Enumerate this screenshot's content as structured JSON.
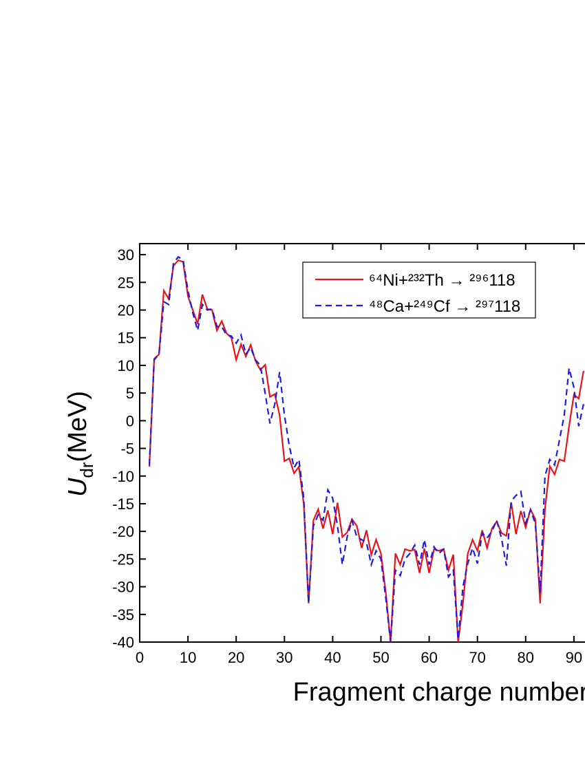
{
  "chart_data": {
    "type": "line",
    "xlabel": "Fragment charge number",
    "ylabel": {
      "main": "U",
      "sub": "dr",
      "unit": "(MeV)"
    },
    "x": [
      2,
      3,
      4,
      5,
      6,
      7,
      8,
      9,
      10,
      11,
      12,
      13,
      14,
      15,
      16,
      17,
      18,
      19,
      20,
      21,
      22,
      23,
      24,
      25,
      26,
      27,
      28,
      29,
      30,
      31,
      32,
      33,
      34,
      35,
      36,
      37,
      38,
      39,
      40,
      41,
      42,
      43,
      44,
      45,
      46,
      47,
      48,
      49,
      50,
      51,
      52,
      53,
      54,
      55,
      56,
      57,
      58,
      59,
      60,
      61,
      62,
      63,
      64,
      65,
      66,
      67,
      68,
      69,
      70,
      71,
      72,
      73,
      74,
      75,
      76,
      77,
      78,
      79,
      80,
      81,
      82,
      83,
      84,
      85,
      86,
      87,
      88,
      89,
      90,
      91,
      92
    ],
    "series": [
      {
        "name": "⁶⁴Ni+²³²Th → ²⁹⁶118",
        "color": "#e8141b",
        "dash": false,
        "values": [
          -8.3,
          11.2,
          12,
          23.5,
          22,
          28,
          29,
          28.7,
          22.5,
          20,
          17.5,
          22.8,
          20.2,
          20,
          16.3,
          18,
          15.8,
          15,
          11,
          13.8,
          11.6,
          13.7,
          10.8,
          9.2,
          10.1,
          4.3,
          4.8,
          1,
          -7.3,
          -6.8,
          -9.5,
          -8.3,
          -15,
          -33,
          -18,
          -16,
          -19.5,
          -16.2,
          -20.5,
          -14.8,
          -21,
          -20.2,
          -17.8,
          -19,
          -23,
          -19.8,
          -24.2,
          -21.5,
          -24,
          -31,
          -40,
          -24,
          -26,
          -23.2,
          -23.5,
          -23.3,
          -27.5,
          -23.1,
          -27.5,
          -23.2,
          -23.5,
          -23.2,
          -27,
          -24.2,
          -40,
          -33,
          -24,
          -21.5,
          -23.5,
          -19.8,
          -23,
          -19.5,
          -18.2,
          -20.3,
          -20.8,
          -14.8,
          -20.5,
          -16.3,
          -19.3,
          -16,
          -17.8,
          -33,
          -16,
          -8.2,
          -9.7,
          -7,
          -7.3,
          -1,
          4.7,
          4,
          9
        ]
      },
      {
        "name": "⁴⁸Ca+²⁴⁹Cf → ²⁹⁷118",
        "color": "#1c1ce8",
        "dash": true,
        "values": [
          -8,
          11,
          12,
          21.5,
          21,
          28.5,
          29.6,
          29,
          23.5,
          19.5,
          16.3,
          21,
          20,
          20.2,
          17,
          17,
          15.5,
          15.3,
          14,
          15.5,
          12,
          13.2,
          11,
          10,
          5,
          -0.5,
          3,
          8.8,
          1,
          -4.5,
          -8.5,
          -7,
          -14,
          -33,
          -19,
          -17,
          -18,
          -12.5,
          -14,
          -19,
          -26,
          -21,
          -18,
          -21,
          -21.5,
          -22,
          -26,
          -23.5,
          -25,
          -32,
          -40,
          -27,
          -28,
          -25,
          -24,
          -22.5,
          -26,
          -21.5,
          -26,
          -22.8,
          -24,
          -23.2,
          -28.2,
          -27,
          -39.5,
          -30,
          -25.8,
          -23,
          -25.8,
          -20.3,
          -21.2,
          -20,
          -18,
          -21.3,
          -26.2,
          -14.5,
          -13.5,
          -12.8,
          -18.5,
          -16.2,
          -18.5,
          -31,
          -10,
          -7,
          -8,
          -3.5,
          1,
          9.5,
          6,
          -1,
          3
        ]
      }
    ],
    "xlim": [
      0,
      92.3
    ],
    "ylim": [
      -40,
      32
    ],
    "xticks": [
      0,
      10,
      20,
      30,
      40,
      50,
      60,
      70,
      80,
      90
    ],
    "yticks": [
      -40,
      -35,
      -30,
      -25,
      -20,
      -15,
      -10,
      -5,
      0,
      5,
      10,
      15,
      20,
      25,
      30
    ],
    "legend": "top-right"
  }
}
